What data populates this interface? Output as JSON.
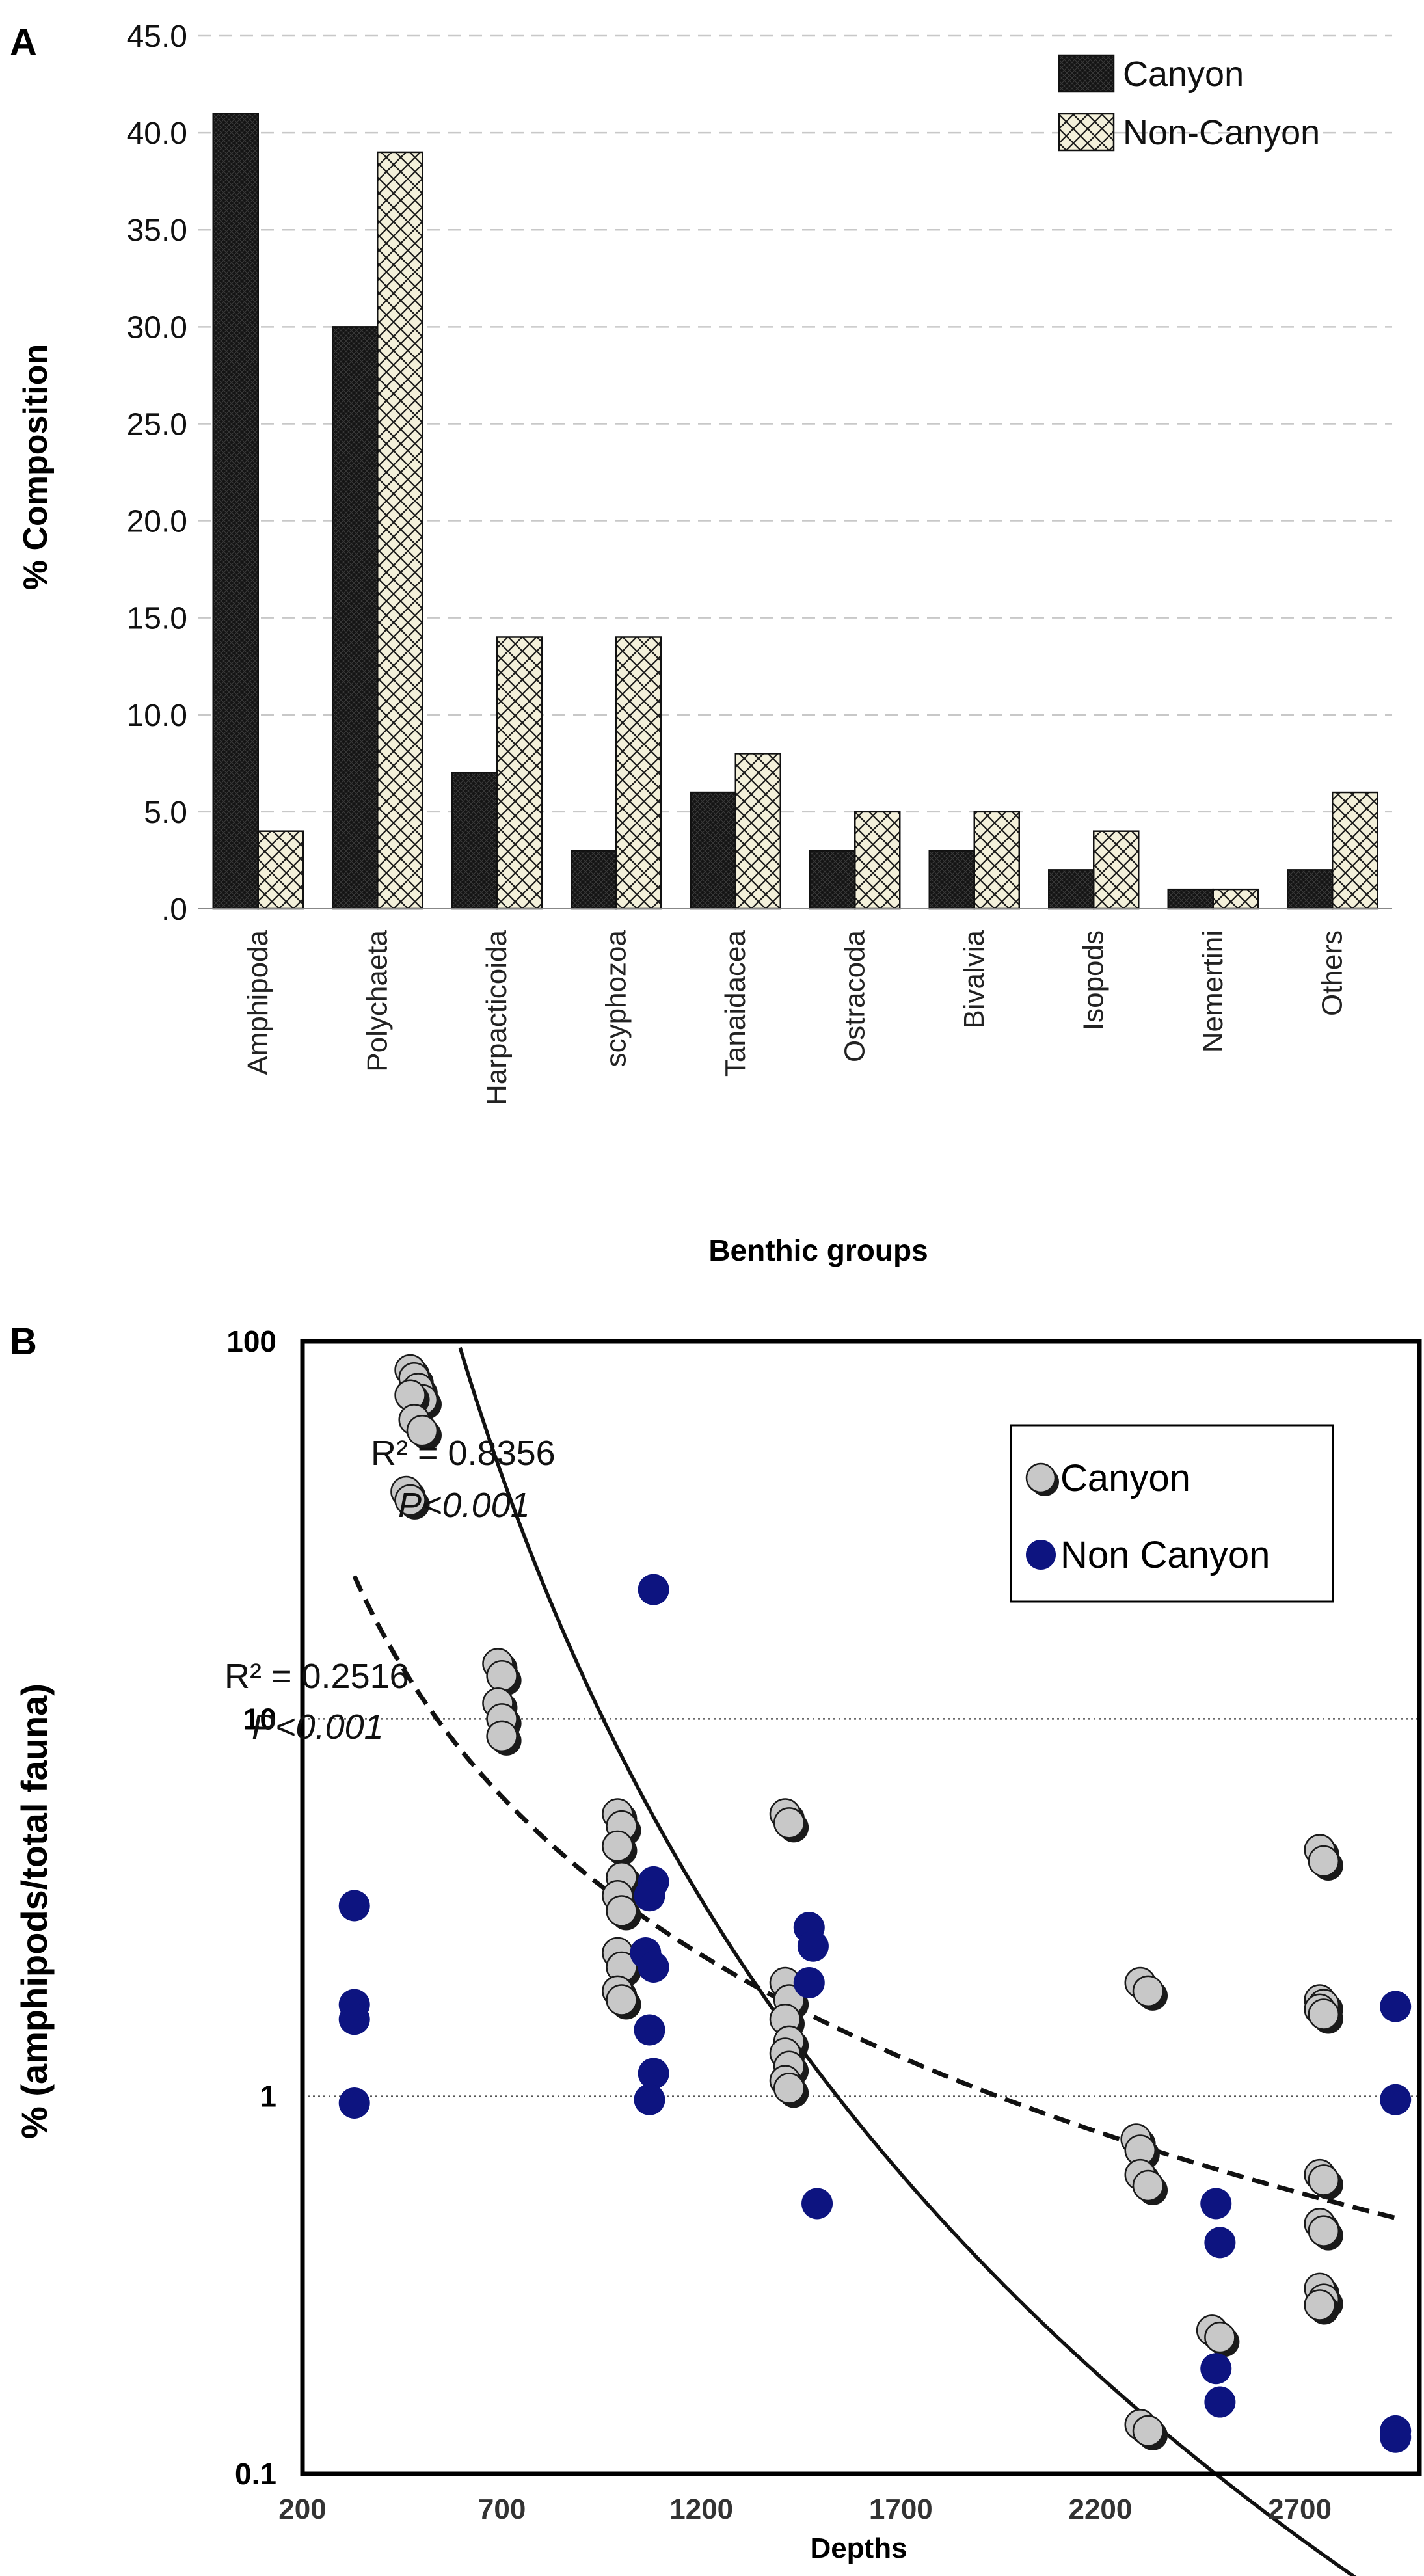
{
  "chart_data": [
    {
      "panel": "A",
      "type": "bar",
      "title": "",
      "xlabel": "Benthic groups",
      "ylabel": "% Composition",
      "ylim": [
        0,
        45
      ],
      "yticks": [
        ".0",
        "5.0",
        "10.0",
        "15.0",
        "20.0",
        "25.0",
        "30.0",
        "35.0",
        "40.0",
        "45.0"
      ],
      "grid": true,
      "legend_position": "top-right",
      "categories": [
        "Amphipoda",
        "Polychaeta",
        "Harpacticoida",
        "scyphozoa",
        "Tanaidacea",
        "Ostracoda",
        "Bivalvia",
        "Isopods",
        "Nemertini",
        "Others"
      ],
      "series": [
        {
          "name": "Canyon",
          "values": [
            41,
            30,
            7,
            3,
            6,
            3,
            3,
            2,
            1,
            2
          ],
          "color": "#141414"
        },
        {
          "name": "Non-Canyon",
          "values": [
            4,
            39,
            14,
            14,
            8,
            5,
            5,
            4,
            1,
            6
          ],
          "color": "#f3f0da"
        }
      ]
    },
    {
      "panel": "B",
      "type": "scatter",
      "title": "",
      "xlabel": "Depths",
      "ylabel": "% (amphipods/total fauna)",
      "xlim": [
        200,
        3000
      ],
      "ylim": [
        0.1,
        100
      ],
      "yscale": "log",
      "xticks": [
        "200",
        "700",
        "1200",
        "1700",
        "2200",
        "2700"
      ],
      "yticks": [
        "0.1",
        "1",
        "10",
        "100"
      ],
      "legend_position": "top-right",
      "series": [
        {
          "name": "Canyon",
          "color": "#c8c8c8",
          "points": [
            [
              470,
              84
            ],
            [
              480,
              80
            ],
            [
              490,
              75
            ],
            [
              500,
              70
            ],
            [
              470,
              72
            ],
            [
              480,
              62
            ],
            [
              500,
              58
            ],
            [
              460,
              40
            ],
            [
              470,
              38
            ],
            [
              690,
              14
            ],
            [
              700,
              13
            ],
            [
              690,
              11
            ],
            [
              700,
              10
            ],
            [
              700,
              9
            ],
            [
              990,
              5.6
            ],
            [
              1000,
              5.2
            ],
            [
              990,
              4.6
            ],
            [
              1000,
              3.8
            ],
            [
              990,
              3.4
            ],
            [
              1000,
              3.1
            ],
            [
              990,
              2.4
            ],
            [
              1000,
              2.2
            ],
            [
              990,
              1.9
            ],
            [
              1000,
              1.8
            ],
            [
              1410,
              5.6
            ],
            [
              1420,
              5.3
            ],
            [
              1410,
              2.0
            ],
            [
              1420,
              1.8
            ],
            [
              1410,
              1.6
            ],
            [
              1420,
              1.4
            ],
            [
              1410,
              1.3
            ],
            [
              1420,
              1.2
            ],
            [
              1410,
              1.1
            ],
            [
              1420,
              1.05
            ],
            [
              2300,
              2.0
            ],
            [
              2320,
              1.9
            ],
            [
              2290,
              0.77
            ],
            [
              2300,
              0.72
            ],
            [
              2300,
              0.62
            ],
            [
              2320,
              0.58
            ],
            [
              2300,
              0.135
            ],
            [
              2320,
              0.13
            ],
            [
              2480,
              0.24
            ],
            [
              2500,
              0.23
            ],
            [
              2750,
              4.5
            ],
            [
              2760,
              4.2
            ],
            [
              2750,
              1.8
            ],
            [
              2760,
              1.75
            ],
            [
              2750,
              1.7
            ],
            [
              2760,
              1.65
            ],
            [
              2750,
              0.62
            ],
            [
              2760,
              0.6
            ],
            [
              2750,
              0.46
            ],
            [
              2760,
              0.44
            ],
            [
              2750,
              0.31
            ],
            [
              2760,
              0.29
            ],
            [
              2750,
              0.28
            ]
          ]
        },
        {
          "name": "Non Canyon",
          "color": "#0d1480",
          "points": [
            [
              330,
              3.2
            ],
            [
              330,
              1.75
            ],
            [
              330,
              1.6
            ],
            [
              330,
              0.96
            ],
            [
              1080,
              22
            ],
            [
              1080,
              3.7
            ],
            [
              1070,
              3.4
            ],
            [
              1060,
              2.4
            ],
            [
              1080,
              2.2
            ],
            [
              1070,
              1.5
            ],
            [
              1080,
              1.15
            ],
            [
              1070,
              0.98
            ],
            [
              1470,
              2.8
            ],
            [
              1480,
              2.5
            ],
            [
              1470,
              2.0
            ],
            [
              1490,
              0.52
            ],
            [
              2490,
              0.52
            ],
            [
              2500,
              0.41
            ],
            [
              2490,
              0.19
            ],
            [
              2500,
              0.155
            ],
            [
              2940,
              1.73
            ],
            [
              2940,
              0.98
            ],
            [
              2940,
              0.13
            ],
            [
              2940,
              0.125
            ]
          ]
        }
      ],
      "fits": [
        {
          "series": "Canyon",
          "style": "solid",
          "r2_label": "R² = 0.8356",
          "p_label": "P<0.001",
          "model": "power",
          "a": 2000000000000000.0,
          "b": -4.8
        },
        {
          "series": "Non Canyon",
          "style": "dashed",
          "r2_label": "R² = 0.2516",
          "p_label": "P<0.001",
          "model": "power",
          "a": 770000.0,
          "b": -1.79
        }
      ]
    }
  ]
}
